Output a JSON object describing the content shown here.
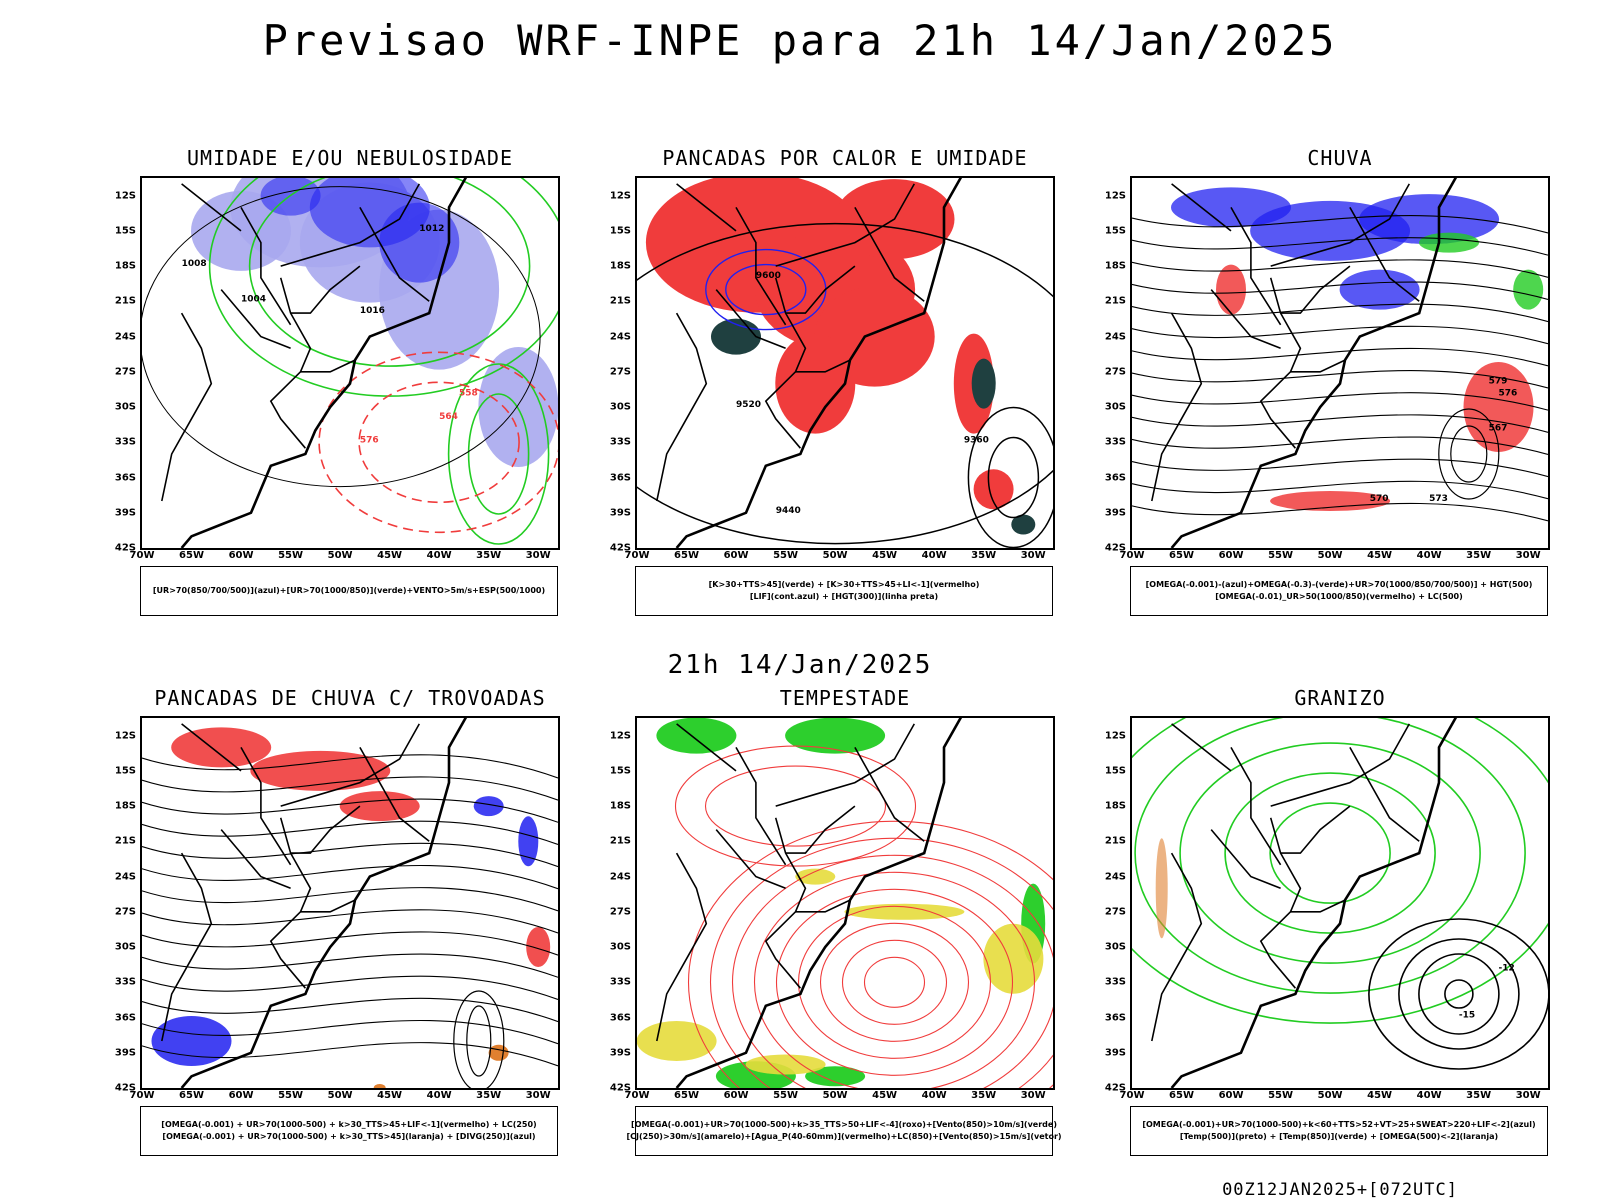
{
  "main_title": "Previsao WRF-INPE  para 21h 14/Jan/2025",
  "mid_title": "21h 14/Jan/2025",
  "footer_stamp": "00Z12JAN2025+[072UTC]",
  "axes": {
    "lat_labels": [
      "12S",
      "15S",
      "18S",
      "21S",
      "24S",
      "27S",
      "30S",
      "33S",
      "36S",
      "39S",
      "42S"
    ],
    "lon_labels": [
      "70W",
      "65W",
      "60W",
      "55W",
      "50W",
      "45W",
      "40W",
      "35W",
      "30W"
    ]
  },
  "colors": {
    "red": "#f03c3c",
    "blue": "#2020f0",
    "green": "#22cc22",
    "lavender": "#a8a8ee",
    "dark_teal": "#1f4040",
    "yellow": "#e6dc3c",
    "orange": "#e08030"
  },
  "panels": [
    {
      "title": "UMIDADE E/OU NEBULOSIDADE",
      "legend": [
        "[UR>70(850/700/500)](azul)+[UR>70(1000/850)](verde)+VENTO>5m/s+ESP(500/1000)"
      ],
      "contour_labels": [
        "1012",
        "1008",
        "1004",
        "1016",
        "576",
        "564",
        "558"
      ]
    },
    {
      "title": "PANCADAS POR CALOR E UMIDADE",
      "legend": [
        "[K>30+TTS>45](verde)  +  [K>30+TTS>45+LI<-1](vermelho)",
        "[LIF](cont.azul)  +  [HGT(300)](linha preta)"
      ],
      "contour_labels": [
        "9600",
        "9520",
        "9440",
        "9360"
      ]
    },
    {
      "title": "CHUVA",
      "legend": [
        "[OMEGA(-0.001)-(azul)+OMEGA(-0.3)-(verde)+UR>70(1000/850/700/500)]  +  HGT(500)",
        "[OMEGA(-0.01)_UR>50(1000/850)(vermelho)  +  LC(500)"
      ],
      "contour_labels": [
        "579",
        "576",
        "573",
        "570",
        "567"
      ]
    },
    {
      "title": "PANCADAS DE CHUVA C/ TROVOADAS",
      "legend": [
        "[OMEGA(-0.001)  +  UR>70(1000-500)  +  k>30_TTS>45+LIF<-1](vermelho)  +  LC(250)",
        "[OMEGA(-0.001)  +  UR>70(1000-500)  +  k>30_TTS>45](laranja)  +  [DIVG(250)](azul)"
      ],
      "contour_labels": []
    },
    {
      "title": "TEMPESTADE",
      "legend": [
        "[OMEGA(-0.001)+UR>70(1000-500)+k>35_TTS>50+LIF<-4](roxo)+[Vento(850)>10m/s](verde)",
        "[CJ(250)>30m/s](amarelo)+[Agua_P(40-60mm)](vermelho)+LC(850)+[Vento(850)>15m/s](vetor)"
      ],
      "contour_labels": []
    },
    {
      "title": "GRANIZO",
      "legend": [
        "[OMEGA(-0.001)+UR>70(1000-500)+k<60+TTS>52+VT>25+SWEAT>220+LIF<-2](azul)",
        "[Temp(500)](preto)  +  [Temp(850)](verde)  +  [OMEGA(500)<-2](laranja)"
      ],
      "contour_labels": [
        "-12",
        "-15"
      ]
    }
  ]
}
